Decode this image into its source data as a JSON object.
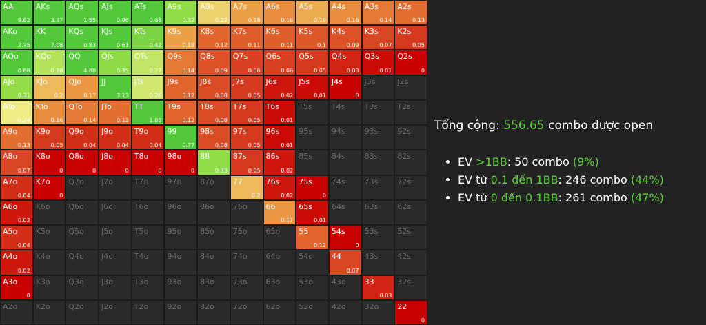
{
  "grid": {
    "rows": [
      [
        [
          "AA",
          9.62
        ],
        [
          "AKs",
          3.37
        ],
        [
          "AQs",
          1.55
        ],
        [
          "AJs",
          0.96
        ],
        [
          "ATs",
          0.68
        ],
        [
          "A9s",
          0.32
        ],
        [
          "A8s",
          0.22
        ],
        [
          "A7s",
          0.18
        ],
        [
          "A6s",
          0.16
        ],
        [
          "A5s",
          0.19
        ],
        [
          "A4s",
          0.16
        ],
        [
          "A3s",
          0.14
        ],
        [
          "A2s",
          0.13
        ]
      ],
      [
        [
          "AKo",
          2.75
        ],
        [
          "KK",
          7.08
        ],
        [
          "KQs",
          0.83
        ],
        [
          "KJs",
          0.61
        ],
        [
          "KTs",
          0.42
        ],
        [
          "K9s",
          0.18
        ],
        [
          "K8s",
          0.12
        ],
        [
          "K7s",
          0.11
        ],
        [
          "K6s",
          0.11
        ],
        [
          "K5s",
          0.1
        ],
        [
          "K4s",
          0.09
        ],
        [
          "K3s",
          0.07
        ],
        [
          "K2s",
          0.05
        ]
      ],
      [
        [
          "AQo",
          0.88
        ],
        [
          "KQo",
          0.28
        ],
        [
          "QQ",
          4.88
        ],
        [
          "QJs",
          0.35
        ],
        [
          "QTs",
          0.27
        ],
        [
          "Q9s",
          0.14
        ],
        [
          "Q8s",
          0.09
        ],
        [
          "Q7s",
          0.06
        ],
        [
          "Q6s",
          0.06
        ],
        [
          "Q5s",
          0.05
        ],
        [
          "Q4s",
          0.03
        ],
        [
          "Q3s",
          0.01
        ],
        [
          "Q2s",
          0
        ]
      ],
      [
        [
          "AJo",
          0.31
        ],
        [
          "KJo",
          0.2
        ],
        [
          "QJo",
          0.17
        ],
        [
          "JJ",
          3.13
        ],
        [
          "JTs",
          0.26
        ],
        [
          "J9s",
          0.12
        ],
        [
          "J8s",
          0.08
        ],
        [
          "J7s",
          0.05
        ],
        [
          "J6s",
          0.02
        ],
        [
          "J5s",
          0.01
        ],
        [
          "J4s",
          0
        ],
        [
          "J3s",
          null
        ],
        [
          "J2s",
          null
        ]
      ],
      [
        [
          "ATo",
          0.24
        ],
        [
          "KTo",
          0.16
        ],
        [
          "QTo",
          0.14
        ],
        [
          "JTo",
          0.13
        ],
        [
          "TT",
          1.85
        ],
        [
          "T9s",
          0.12
        ],
        [
          "T8s",
          0.08
        ],
        [
          "T7s",
          0.05
        ],
        [
          "T6s",
          0.01
        ],
        [
          "T5s",
          null
        ],
        [
          "T4s",
          null
        ],
        [
          "T3s",
          null
        ],
        [
          "T2s",
          null
        ]
      ],
      [
        [
          "A9o",
          0.13
        ],
        [
          "K9o",
          0.05
        ],
        [
          "Q9o",
          0.04
        ],
        [
          "J9o",
          0.04
        ],
        [
          "T9o",
          0.04
        ],
        [
          "99",
          0.77
        ],
        [
          "98s",
          0.08
        ],
        [
          "97s",
          0.05
        ],
        [
          "96s",
          0.01
        ],
        [
          "95s",
          null
        ],
        [
          "94s",
          null
        ],
        [
          "93s",
          null
        ],
        [
          "92s",
          null
        ]
      ],
      [
        [
          "A8o",
          0.07
        ],
        [
          "K8o",
          0
        ],
        [
          "Q8o",
          0
        ],
        [
          "J8o",
          0
        ],
        [
          "T8o",
          0
        ],
        [
          "98o",
          0
        ],
        [
          "88",
          0.33
        ],
        [
          "87s",
          0.05
        ],
        [
          "86s",
          0.02
        ],
        [
          "85s",
          null
        ],
        [
          "84s",
          null
        ],
        [
          "83s",
          null
        ],
        [
          "82s",
          null
        ]
      ],
      [
        [
          "A7o",
          0.04
        ],
        [
          "K7o",
          0
        ],
        [
          "Q7o",
          null
        ],
        [
          "J7o",
          null
        ],
        [
          "T7o",
          null
        ],
        [
          "97o",
          null
        ],
        [
          "87o",
          null
        ],
        [
          "77",
          0.2
        ],
        [
          "76s",
          0.02
        ],
        [
          "75s",
          0
        ],
        [
          "74s",
          null
        ],
        [
          "73s",
          null
        ],
        [
          "72s",
          null
        ]
      ],
      [
        [
          "A6o",
          0.02
        ],
        [
          "K6o",
          null
        ],
        [
          "Q6o",
          null
        ],
        [
          "J6o",
          null
        ],
        [
          "T6o",
          null
        ],
        [
          "96o",
          null
        ],
        [
          "86o",
          null
        ],
        [
          "76o",
          null
        ],
        [
          "66",
          0.17
        ],
        [
          "65s",
          0.01
        ],
        [
          "64s",
          null
        ],
        [
          "63s",
          null
        ],
        [
          "62s",
          null
        ]
      ],
      [
        [
          "A5o",
          0.04
        ],
        [
          "K5o",
          null
        ],
        [
          "Q5o",
          null
        ],
        [
          "J5o",
          null
        ],
        [
          "T5o",
          null
        ],
        [
          "95o",
          null
        ],
        [
          "85o",
          null
        ],
        [
          "75o",
          null
        ],
        [
          "65o",
          null
        ],
        [
          "55",
          0.12
        ],
        [
          "54s",
          0
        ],
        [
          "53s",
          null
        ],
        [
          "52s",
          null
        ]
      ],
      [
        [
          "A4o",
          0.02
        ],
        [
          "K4o",
          null
        ],
        [
          "Q4o",
          null
        ],
        [
          "J4o",
          null
        ],
        [
          "T4o",
          null
        ],
        [
          "94o",
          null
        ],
        [
          "84o",
          null
        ],
        [
          "74o",
          null
        ],
        [
          "64o",
          null
        ],
        [
          "54o",
          null
        ],
        [
          "44",
          0.07
        ],
        [
          "43s",
          null
        ],
        [
          "42s",
          null
        ]
      ],
      [
        [
          "A3o",
          0
        ],
        [
          "K3o",
          null
        ],
        [
          "Q3o",
          null
        ],
        [
          "J3o",
          null
        ],
        [
          "T3o",
          null
        ],
        [
          "93o",
          null
        ],
        [
          "83o",
          null
        ],
        [
          "73o",
          null
        ],
        [
          "63o",
          null
        ],
        [
          "53o",
          null
        ],
        [
          "43o",
          null
        ],
        [
          "33",
          0.03
        ],
        [
          "32s",
          null
        ]
      ],
      [
        [
          "A2o",
          null
        ],
        [
          "K2o",
          null
        ],
        [
          "Q2o",
          null
        ],
        [
          "J2o",
          null
        ],
        [
          "T2o",
          null
        ],
        [
          "92o",
          null
        ],
        [
          "82o",
          null
        ],
        [
          "72o",
          null
        ],
        [
          "62o",
          null
        ],
        [
          "52o",
          null
        ],
        [
          "42o",
          null
        ],
        [
          "32o",
          null
        ],
        [
          "22",
          0
        ]
      ]
    ]
  },
  "summary": {
    "prefix": "Tổng cộng:",
    "total": "556.65",
    "suffix": "combo được open"
  },
  "items": [
    {
      "label": "EV",
      "range": ">1BB",
      "count": ": 50 combo",
      "pct": "(9%)"
    },
    {
      "label": "EV từ",
      "range": "0.1 đến 1BB",
      "count": ": 246 combo",
      "pct": "(44%)"
    },
    {
      "label": "EV từ",
      "range": "0 đến 0.1BB",
      "count": ": 261 combo",
      "pct": "(47%)"
    }
  ]
}
